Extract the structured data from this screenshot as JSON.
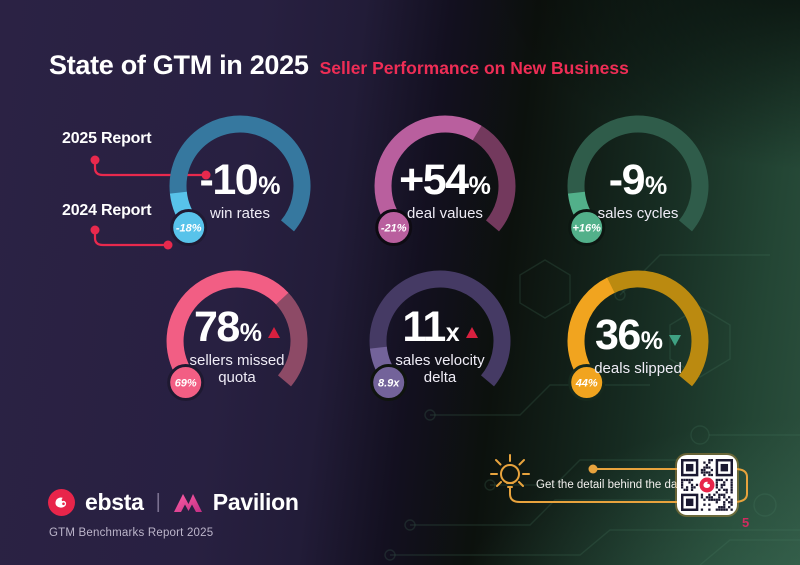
{
  "header": {
    "title": "State of GTM in 2025",
    "subtitle": "Seller Performance on New Business"
  },
  "legend": {
    "item_2025": "2025 Report",
    "item_2024": "2024 Report",
    "connector_color": "#e8294d"
  },
  "chart_data": [
    {
      "type": "gauge",
      "metric_label": "win rates",
      "value_2025": "-10%",
      "value_2024": "-18%",
      "trend": null,
      "arc_split_fraction": 0.13,
      "color_2024_segment": "#58c3ea",
      "color_2025_segment": "#36789f",
      "badge_ring": "#201a33"
    },
    {
      "type": "gauge",
      "metric_label": "deal values",
      "value_2025": "+54%",
      "value_2024": "-21%",
      "trend": null,
      "arc_split_fraction": 0.62,
      "color_2024_segment": "#b95f9e",
      "color_2025_segment": "#73395d",
      "badge_ring": "#0e0b13"
    },
    {
      "type": "gauge",
      "metric_label": "sales cycles",
      "value_2025": "-9%",
      "value_2024": "+16%",
      "trend": null,
      "arc_split_fraction": 0.13,
      "color_2024_segment": "#52b08a",
      "color_2025_segment": "#2f5c4a",
      "badge_ring": "#0d1712"
    },
    {
      "type": "gauge",
      "metric_label": "sellers missed quota",
      "value_2025": "78%",
      "value_2024": "69%",
      "trend": "up",
      "arc_split_fraction": 0.68,
      "color_2024_segment": "#f25e84",
      "color_2025_segment": "#8d4a66",
      "badge_ring": "#1e1931"
    },
    {
      "type": "gauge",
      "metric_label": "sales velocity delta",
      "value_2025": "11x",
      "value_2024": "8.9x",
      "trend": "up",
      "arc_split_fraction": 0.13,
      "color_2024_segment": "#73639a",
      "color_2025_segment": "#453a64",
      "badge_ring": "#0f140f"
    },
    {
      "type": "gauge",
      "metric_label": "deals slipped",
      "value_2025": "36%",
      "value_2024": "44%",
      "trend": "down",
      "arc_split_fraction": 0.4,
      "color_2024_segment": "#f1a41f",
      "color_2025_segment": "#bb8a10",
      "badge_ring": "#16291e"
    }
  ],
  "trend_colors": {
    "up": "#d8203f",
    "down": "#3fa183"
  },
  "footer": {
    "brand_left": "ebsta",
    "brand_right": "Pavilion",
    "report_label": "GTM Benchmarks Report 2025",
    "callout_text": "Get the detail behind the data.",
    "page_number": "5",
    "accent_yellow": "#e8a33d",
    "ebsta_red": "#e8254a",
    "pavilion_pink": "#e23a8e"
  }
}
